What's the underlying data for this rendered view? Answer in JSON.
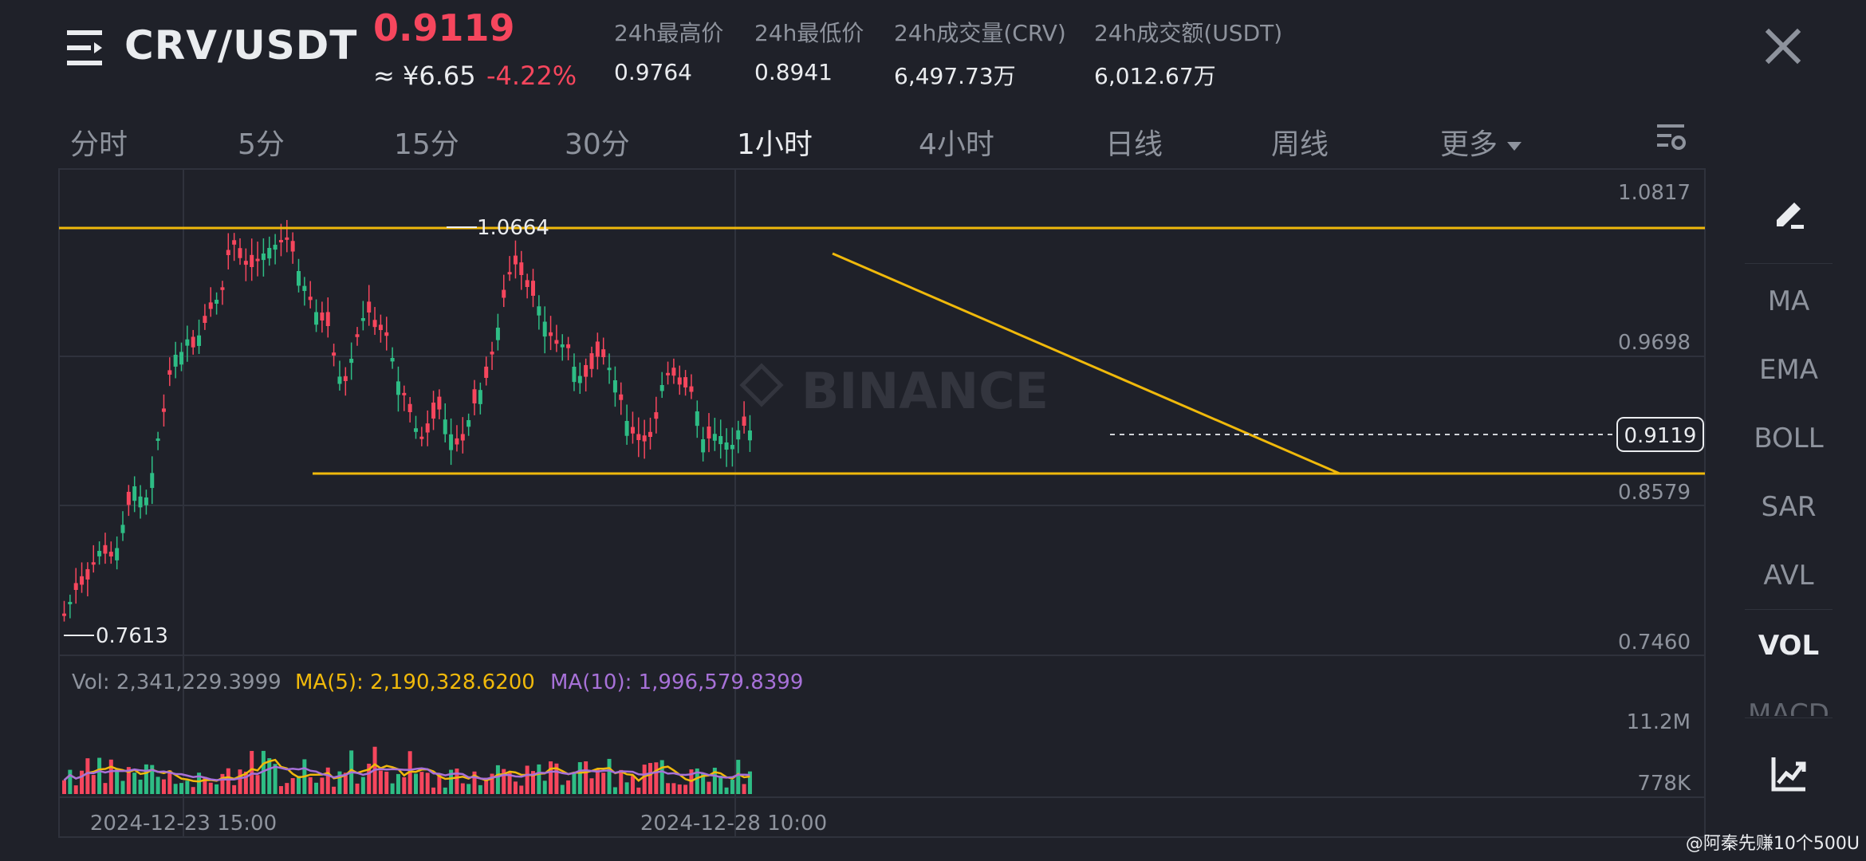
{
  "header": {
    "pair": "CRV/USDT",
    "price": "0.9119",
    "cny_price": "≈ ¥6.65",
    "change": "-4.22%",
    "stats": [
      {
        "label": "24h最高价",
        "value": "0.9764"
      },
      {
        "label": "24h最低价",
        "value": "0.8941"
      },
      {
        "label": "24h成交量(CRV)",
        "value": "6,497.73万"
      },
      {
        "label": "24h成交额(USDT)",
        "value": "6,012.67万"
      }
    ]
  },
  "tabs": [
    "分时",
    "5分",
    "15分",
    "30分",
    "1小时",
    "4小时",
    "日线",
    "周线",
    "更多"
  ],
  "active_tab": "1小时",
  "side_panel": [
    "MA",
    "EMA",
    "BOLL",
    "SAR",
    "AVL",
    "VOL",
    "MACD"
  ],
  "active_indicator": "VOL",
  "chart": {
    "price_axis": [
      "1.0817",
      "0.9698",
      "0.8579",
      "0.7460"
    ],
    "high_marker": "1.0664",
    "low_marker": "0.7613",
    "current_price_label": "0.9119",
    "watermark": "BINANCE",
    "time_axis": [
      "2024-12-23 15:00",
      "2024-12-28 10:00"
    ],
    "vol_axis": [
      "11.2M",
      "778K"
    ],
    "vol_legend": {
      "vol": "Vol: 2,341,229.3999",
      "ma5": "MA(5): 2,190,328.6200",
      "ma10": "MA(10): 1,996,579.8399"
    }
  },
  "colors": {
    "up": "#2ebd85",
    "down": "#f6465d",
    "line": "#f0b90b",
    "ma10": "#a771d8"
  },
  "credit": "@阿秦先赚10个500U"
}
